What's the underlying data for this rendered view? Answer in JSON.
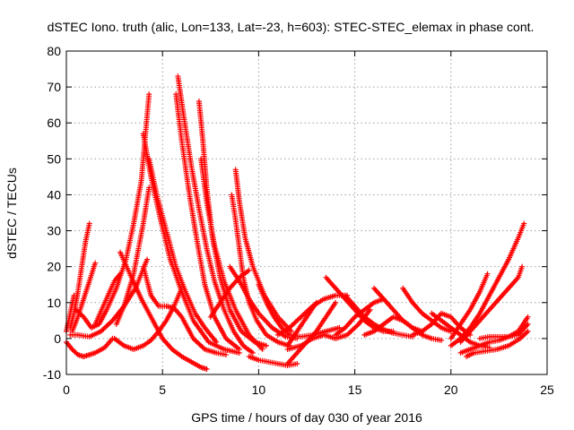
{
  "chart_data": {
    "type": "scatter",
    "title": "dSTEC Iono. truth (alic, Lon=133, Lat=-23, h=603): STEC-STEC_elemax in phase cont.",
    "xlabel": "GPS time / hours of day 030 of year 2016",
    "ylabel": "dSTEC  / TECUs",
    "xlim": [
      0,
      25
    ],
    "ylim": [
      -10,
      80
    ],
    "xticks": [
      0,
      5,
      10,
      15,
      20,
      25
    ],
    "yticks": [
      -10,
      0,
      10,
      20,
      30,
      40,
      50,
      60,
      70,
      80
    ],
    "grid": true,
    "marker": "+",
    "color": "#ff0000",
    "series": [
      {
        "x": [
          0.0,
          0.3,
          0.6,
          0.9,
          1.2,
          1.5,
          2.0,
          2.4
        ],
        "y": [
          -1,
          -3,
          -4.5,
          -5,
          -4.5,
          -4,
          -2.5,
          0
        ]
      },
      {
        "x": [
          0.2,
          0.4,
          0.6,
          0.8,
          1.0,
          1.2
        ],
        "y": [
          3,
          7,
          13,
          20,
          27,
          32
        ]
      },
      {
        "x": [
          0.3,
          0.6,
          0.9,
          1.2,
          1.5
        ],
        "y": [
          2,
          6,
          11,
          16,
          21
        ]
      },
      {
        "x": [
          0.0,
          0.2,
          0.4
        ],
        "y": [
          2,
          7,
          12
        ]
      },
      {
        "x": [
          0.2,
          0.6,
          1.2,
          1.8,
          2.4,
          3.0,
          3.6,
          3.9,
          4.2
        ],
        "y": [
          1,
          1,
          0.5,
          2,
          5,
          9,
          14,
          18,
          22
        ]
      },
      {
        "x": [
          0.5,
          0.9,
          1.3,
          1.7,
          2.1,
          2.6,
          3.1,
          3.5,
          3.9,
          4.1,
          4.3
        ],
        "y": [
          8,
          6,
          3,
          4,
          8,
          14,
          22,
          32,
          44,
          56,
          68
        ]
      },
      {
        "x": [
          2.6,
          3.0,
          3.5,
          4.0,
          4.3
        ],
        "y": [
          4,
          9,
          18,
          32,
          42
        ]
      },
      {
        "x": [
          1.5,
          2.0,
          2.5,
          2.8
        ],
        "y": [
          4,
          10,
          16,
          18
        ]
      },
      {
        "x": [
          2.8,
          3.3,
          3.9,
          4.5,
          5.0,
          5.5,
          6.0,
          6.5,
          7.0,
          7.3
        ],
        "y": [
          24,
          18,
          11,
          5,
          0,
          -3,
          -5,
          -6.5,
          -8,
          -8.5
        ]
      },
      {
        "x": [
          2.5,
          3.0,
          3.5,
          4.0,
          4.4,
          4.8,
          5.2,
          5.6,
          6.0
        ],
        "y": [
          0,
          -2,
          -3,
          -2,
          -0.5,
          2,
          5,
          9,
          14
        ]
      },
      {
        "x": [
          4.0,
          4.4,
          4.8,
          5.2,
          5.6,
          6.0,
          6.6,
          7.2,
          7.8,
          8.3
        ],
        "y": [
          20,
          12,
          9,
          9,
          8.5,
          6,
          0,
          -3,
          -4,
          -4.5
        ]
      },
      {
        "x": [
          4.3,
          4.7,
          5.2,
          5.7,
          6.2,
          6.7,
          7.2,
          7.8
        ],
        "y": [
          50,
          40,
          30,
          20,
          13,
          7,
          3,
          -1
        ]
      },
      {
        "x": [
          4.0,
          4.4,
          4.9,
          5.4,
          6.0,
          6.6,
          7.4,
          8.2,
          9.0
        ],
        "y": [
          57,
          45,
          33,
          22,
          13,
          5,
          -1,
          -3,
          -4
        ]
      },
      {
        "x": [
          5.8,
          6.1,
          6.5,
          6.9,
          7.3,
          7.7,
          8.2,
          8.7,
          9.2,
          9.7
        ],
        "y": [
          73,
          62,
          48,
          36,
          25,
          16,
          8,
          2,
          -2,
          -4
        ]
      },
      {
        "x": [
          5.7,
          6.0,
          6.4,
          6.8,
          7.2,
          7.7,
          8.3,
          9.0
        ],
        "y": [
          68,
          55,
          40,
          27,
          15,
          6,
          0,
          -3
        ]
      },
      {
        "x": [
          6.9,
          7.1,
          7.3,
          7.6,
          8.0,
          8.5,
          9.1,
          9.8,
          10.4
        ],
        "y": [
          66,
          55,
          42,
          28,
          17,
          8,
          2,
          -1,
          -2
        ]
      },
      {
        "x": [
          7.0,
          7.3,
          7.7,
          8.2,
          8.8,
          9.5,
          10.2
        ],
        "y": [
          50,
          38,
          26,
          16,
          8,
          1,
          -3
        ]
      },
      {
        "x": [
          8.6,
          8.8,
          9.0,
          9.2,
          9.5,
          9.9,
          10.4,
          11.0,
          11.6
        ],
        "y": [
          40,
          33,
          25,
          17,
          10,
          5,
          1,
          -1,
          -2
        ]
      },
      {
        "x": [
          8.8,
          9.0,
          9.3,
          9.7,
          10.3,
          11.0,
          11.7
        ],
        "y": [
          47,
          38,
          28,
          20,
          12,
          6,
          2
        ]
      },
      {
        "x": [
          7.5,
          8.0,
          8.5,
          9.0,
          9.5
        ],
        "y": [
          6,
          10,
          14,
          17,
          19
        ]
      },
      {
        "x": [
          8.5,
          9.0,
          9.5,
          10.0,
          10.7,
          11.4,
          12.0
        ],
        "y": [
          20,
          16,
          11,
          7,
          3,
          0.5,
          0
        ]
      },
      {
        "x": [
          10.0,
          10.4,
          10.8,
          11.2,
          11.6,
          12.2,
          12.8,
          13.5,
          14.2
        ],
        "y": [
          15,
          10,
          6,
          3,
          1,
          0.5,
          1,
          2,
          3
        ]
      },
      {
        "x": [
          9.5,
          10.0,
          10.5,
          11.0,
          11.5,
          12.0
        ],
        "y": [
          -5,
          -6,
          -6.5,
          -7,
          -7.5,
          -7
        ]
      },
      {
        "x": [
          11.5,
          12.0,
          12.5,
          13.0,
          13.5,
          14.0
        ],
        "y": [
          -7,
          -4,
          -1,
          2,
          6,
          10
        ]
      },
      {
        "x": [
          11.0,
          11.6,
          12.2,
          12.8,
          13.4,
          14.0,
          14.6
        ],
        "y": [
          1,
          3,
          6,
          9,
          11,
          12,
          12
        ]
      },
      {
        "x": [
          11.5,
          12.0,
          12.5,
          13.0
        ],
        "y": [
          -2,
          2,
          6,
          10
        ]
      },
      {
        "x": [
          11.5,
          12.2,
          12.8,
          13.4,
          14.0,
          14.6,
          15.2,
          15.8
        ],
        "y": [
          -3,
          -2,
          0,
          1,
          0,
          1,
          4,
          8
        ]
      },
      {
        "x": [
          13.5,
          14.0,
          14.5,
          15.0,
          15.5,
          16.0,
          16.5,
          17.0
        ],
        "y": [
          17,
          14,
          11,
          8,
          5,
          3,
          2,
          2
        ]
      },
      {
        "x": [
          14.0,
          14.5,
          15.0,
          15.5,
          16.0,
          16.5
        ],
        "y": [
          1,
          3,
          6,
          8,
          10,
          11
        ]
      },
      {
        "x": [
          14.5,
          15.0,
          15.5,
          16.0,
          16.5,
          17.0,
          17.5,
          18.0
        ],
        "y": [
          12,
          9,
          6,
          4,
          2.5,
          1.5,
          1,
          0.5
        ]
      },
      {
        "x": [
          15.5,
          16.0,
          16.5,
          17.0,
          17.5,
          18.0,
          18.5
        ],
        "y": [
          1,
          2,
          4,
          6,
          5,
          3,
          2
        ]
      },
      {
        "x": [
          16.0,
          16.5,
          17.0,
          17.5,
          18.0,
          18.5,
          19.0,
          19.5
        ],
        "y": [
          14,
          11,
          8,
          5,
          3,
          1,
          0,
          -0.5
        ]
      },
      {
        "x": [
          17.5,
          18.0,
          18.5,
          19.0,
          19.5,
          20.0
        ],
        "y": [
          14,
          10,
          7,
          5,
          3,
          2
        ]
      },
      {
        "x": [
          18.0,
          18.5,
          19.0,
          19.5,
          20.0,
          20.5,
          21.0
        ],
        "y": [
          1,
          2,
          4,
          7,
          6,
          3,
          1
        ]
      },
      {
        "x": [
          19.0,
          19.5,
          20.0,
          20.5,
          21.0,
          21.5,
          22.0
        ],
        "y": [
          7,
          5,
          3,
          1,
          -1,
          -2,
          -2.5
        ]
      },
      {
        "x": [
          20.0,
          20.5,
          21.0,
          21.5,
          22.0,
          22.5,
          23.0,
          23.5,
          23.8
        ],
        "y": [
          -2,
          0,
          3,
          7,
          12,
          17,
          22,
          28,
          32
        ]
      },
      {
        "x": [
          20.5,
          21.0,
          21.5,
          22.0,
          22.5,
          23.0,
          23.5,
          23.7
        ],
        "y": [
          -1,
          2,
          5,
          8,
          11,
          14,
          17,
          20
        ]
      },
      {
        "x": [
          20.0,
          20.5,
          21.0,
          21.5,
          21.9
        ],
        "y": [
          0,
          4,
          8,
          13,
          18
        ]
      },
      {
        "x": [
          20.5,
          21.0,
          21.5,
          22.0,
          22.5,
          23.0,
          23.5,
          24.0
        ],
        "y": [
          -4,
          -3,
          -2,
          -1,
          -0.5,
          0.5,
          2,
          6
        ]
      },
      {
        "x": [
          20.8,
          21.2,
          21.8,
          22.4,
          23.0,
          23.6,
          24.0
        ],
        "y": [
          -5,
          -4,
          -3.5,
          -3,
          -2,
          0,
          2
        ]
      },
      {
        "x": [
          21.5,
          22.0,
          22.5,
          23.0,
          23.5,
          24.0
        ],
        "y": [
          0,
          0.5,
          0.5,
          0.5,
          1,
          4
        ]
      }
    ]
  }
}
